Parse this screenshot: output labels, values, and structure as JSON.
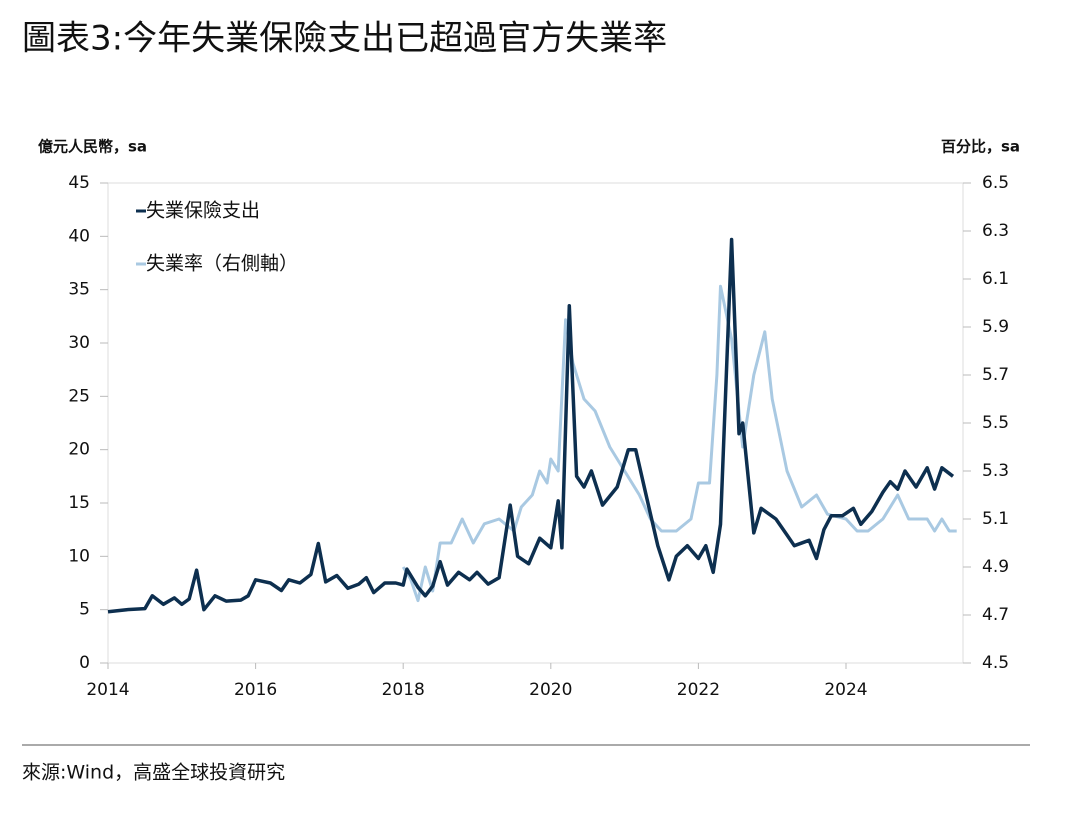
{
  "chart_data": {
    "type": "line",
    "title": "圖表3:今年失業保險支出已超過官方失業率",
    "y_label": "億元人民幣，sa",
    "y2_label": "百分比，sa",
    "source": "來源:Wind，高盛全球投資研究",
    "xlim": [
      2014,
      2025.75
    ],
    "xticks": [
      2014,
      2016,
      2018,
      2020,
      2022,
      2024
    ],
    "ylim": [
      0,
      45
    ],
    "yticks": [
      0,
      5,
      10,
      15,
      20,
      25,
      30,
      35,
      40,
      45
    ],
    "y2lim": [
      4.5,
      6.5
    ],
    "y2ticks": [
      4.5,
      4.7,
      4.9,
      5.1,
      5.3,
      5.5,
      5.7,
      5.9,
      6.1,
      6.3,
      6.5
    ],
    "series": [
      {
        "name": "失業保險支出",
        "color": "#0d2f4f",
        "x": [
          2014.0,
          2014.25,
          2014.5,
          2014.6,
          2014.75,
          2014.9,
          2015.0,
          2015.1,
          2015.2,
          2015.3,
          2015.45,
          2015.6,
          2015.8,
          2015.9,
          2016.0,
          2016.2,
          2016.35,
          2016.45,
          2016.6,
          2016.75,
          2016.85,
          2016.95,
          2017.1,
          2017.25,
          2017.4,
          2017.5,
          2017.6,
          2017.75,
          2017.9,
          2018.0,
          2018.05,
          2018.2,
          2018.3,
          2018.4,
          2018.5,
          2018.6,
          2018.75,
          2018.9,
          2019.0,
          2019.15,
          2019.3,
          2019.45,
          2019.55,
          2019.7,
          2019.85,
          2020.0,
          2020.1,
          2020.15,
          2020.25,
          2020.35,
          2020.45,
          2020.55,
          2020.7,
          2020.9,
          2021.05,
          2021.15,
          2021.3,
          2021.45,
          2021.6,
          2021.7,
          2021.85,
          2022.0,
          2022.1,
          2022.2,
          2022.3,
          2022.45,
          2022.55,
          2022.6,
          2022.75,
          2022.85,
          2023.05,
          2023.2,
          2023.3,
          2023.5,
          2023.6,
          2023.7,
          2023.8,
          2023.95,
          2024.1,
          2024.2,
          2024.35,
          2024.5,
          2024.6,
          2024.7,
          2024.8,
          2024.95,
          2025.1,
          2025.2,
          2025.3,
          2025.45
        ],
        "values": [
          4.8,
          5.0,
          5.1,
          6.3,
          5.5,
          6.1,
          5.5,
          6.0,
          8.7,
          5.0,
          6.3,
          5.8,
          5.9,
          6.3,
          7.8,
          7.5,
          6.8,
          7.8,
          7.5,
          8.3,
          11.2,
          7.6,
          8.2,
          7.0,
          7.4,
          8.0,
          6.6,
          7.5,
          7.5,
          7.3,
          8.8,
          7.1,
          6.3,
          7.2,
          9.5,
          7.3,
          8.5,
          7.8,
          8.5,
          7.4,
          8.0,
          14.8,
          10.0,
          9.3,
          11.7,
          10.8,
          15.2,
          10.8,
          33.5,
          17.5,
          16.5,
          18.0,
          14.8,
          16.5,
          20.0,
          20.0,
          15.5,
          11.0,
          7.8,
          10.0,
          11.0,
          9.8,
          11.0,
          8.5,
          13.0,
          39.7,
          21.5,
          22.5,
          12.2,
          14.5,
          13.5,
          12.0,
          11.0,
          11.5,
          9.8,
          12.5,
          13.8,
          13.8,
          14.5,
          13.0,
          14.2,
          16.0,
          17.0,
          16.3,
          18.0,
          16.5,
          18.3,
          16.3,
          18.3,
          17.5
        ]
      },
      {
        "name": "失業率（右側軸）",
        "color": "#a9c9e2",
        "axis": "y2",
        "x": [
          2018.0,
          2018.1,
          2018.2,
          2018.3,
          2018.4,
          2018.5,
          2018.65,
          2018.8,
          2018.95,
          2019.1,
          2019.3,
          2019.5,
          2019.6,
          2019.75,
          2019.85,
          2019.95,
          2020.0,
          2020.1,
          2020.2,
          2020.3,
          2020.45,
          2020.6,
          2020.8,
          2021.0,
          2021.2,
          2021.35,
          2021.5,
          2021.7,
          2021.9,
          2022.0,
          2022.15,
          2022.25,
          2022.3,
          2022.45,
          2022.6,
          2022.75,
          2022.9,
          2023.0,
          2023.2,
          2023.4,
          2023.6,
          2023.75,
          2024.0,
          2024.15,
          2024.3,
          2024.5,
          2024.7,
          2024.85,
          2025.1,
          2025.2,
          2025.3,
          2025.4,
          2025.5
        ],
        "values": [
          4.9,
          4.85,
          4.76,
          4.9,
          4.8,
          5.0,
          5.0,
          5.1,
          5.0,
          5.08,
          5.1,
          5.05,
          5.15,
          5.2,
          5.3,
          5.25,
          5.35,
          5.3,
          5.93,
          5.75,
          5.6,
          5.55,
          5.4,
          5.3,
          5.2,
          5.1,
          5.05,
          5.05,
          5.1,
          5.25,
          5.25,
          5.7,
          6.07,
          5.85,
          5.4,
          5.7,
          5.88,
          5.6,
          5.3,
          5.15,
          5.2,
          5.12,
          5.1,
          5.05,
          5.05,
          5.1,
          5.2,
          5.1,
          5.1,
          5.05,
          5.1,
          5.05,
          5.05
        ]
      }
    ]
  }
}
